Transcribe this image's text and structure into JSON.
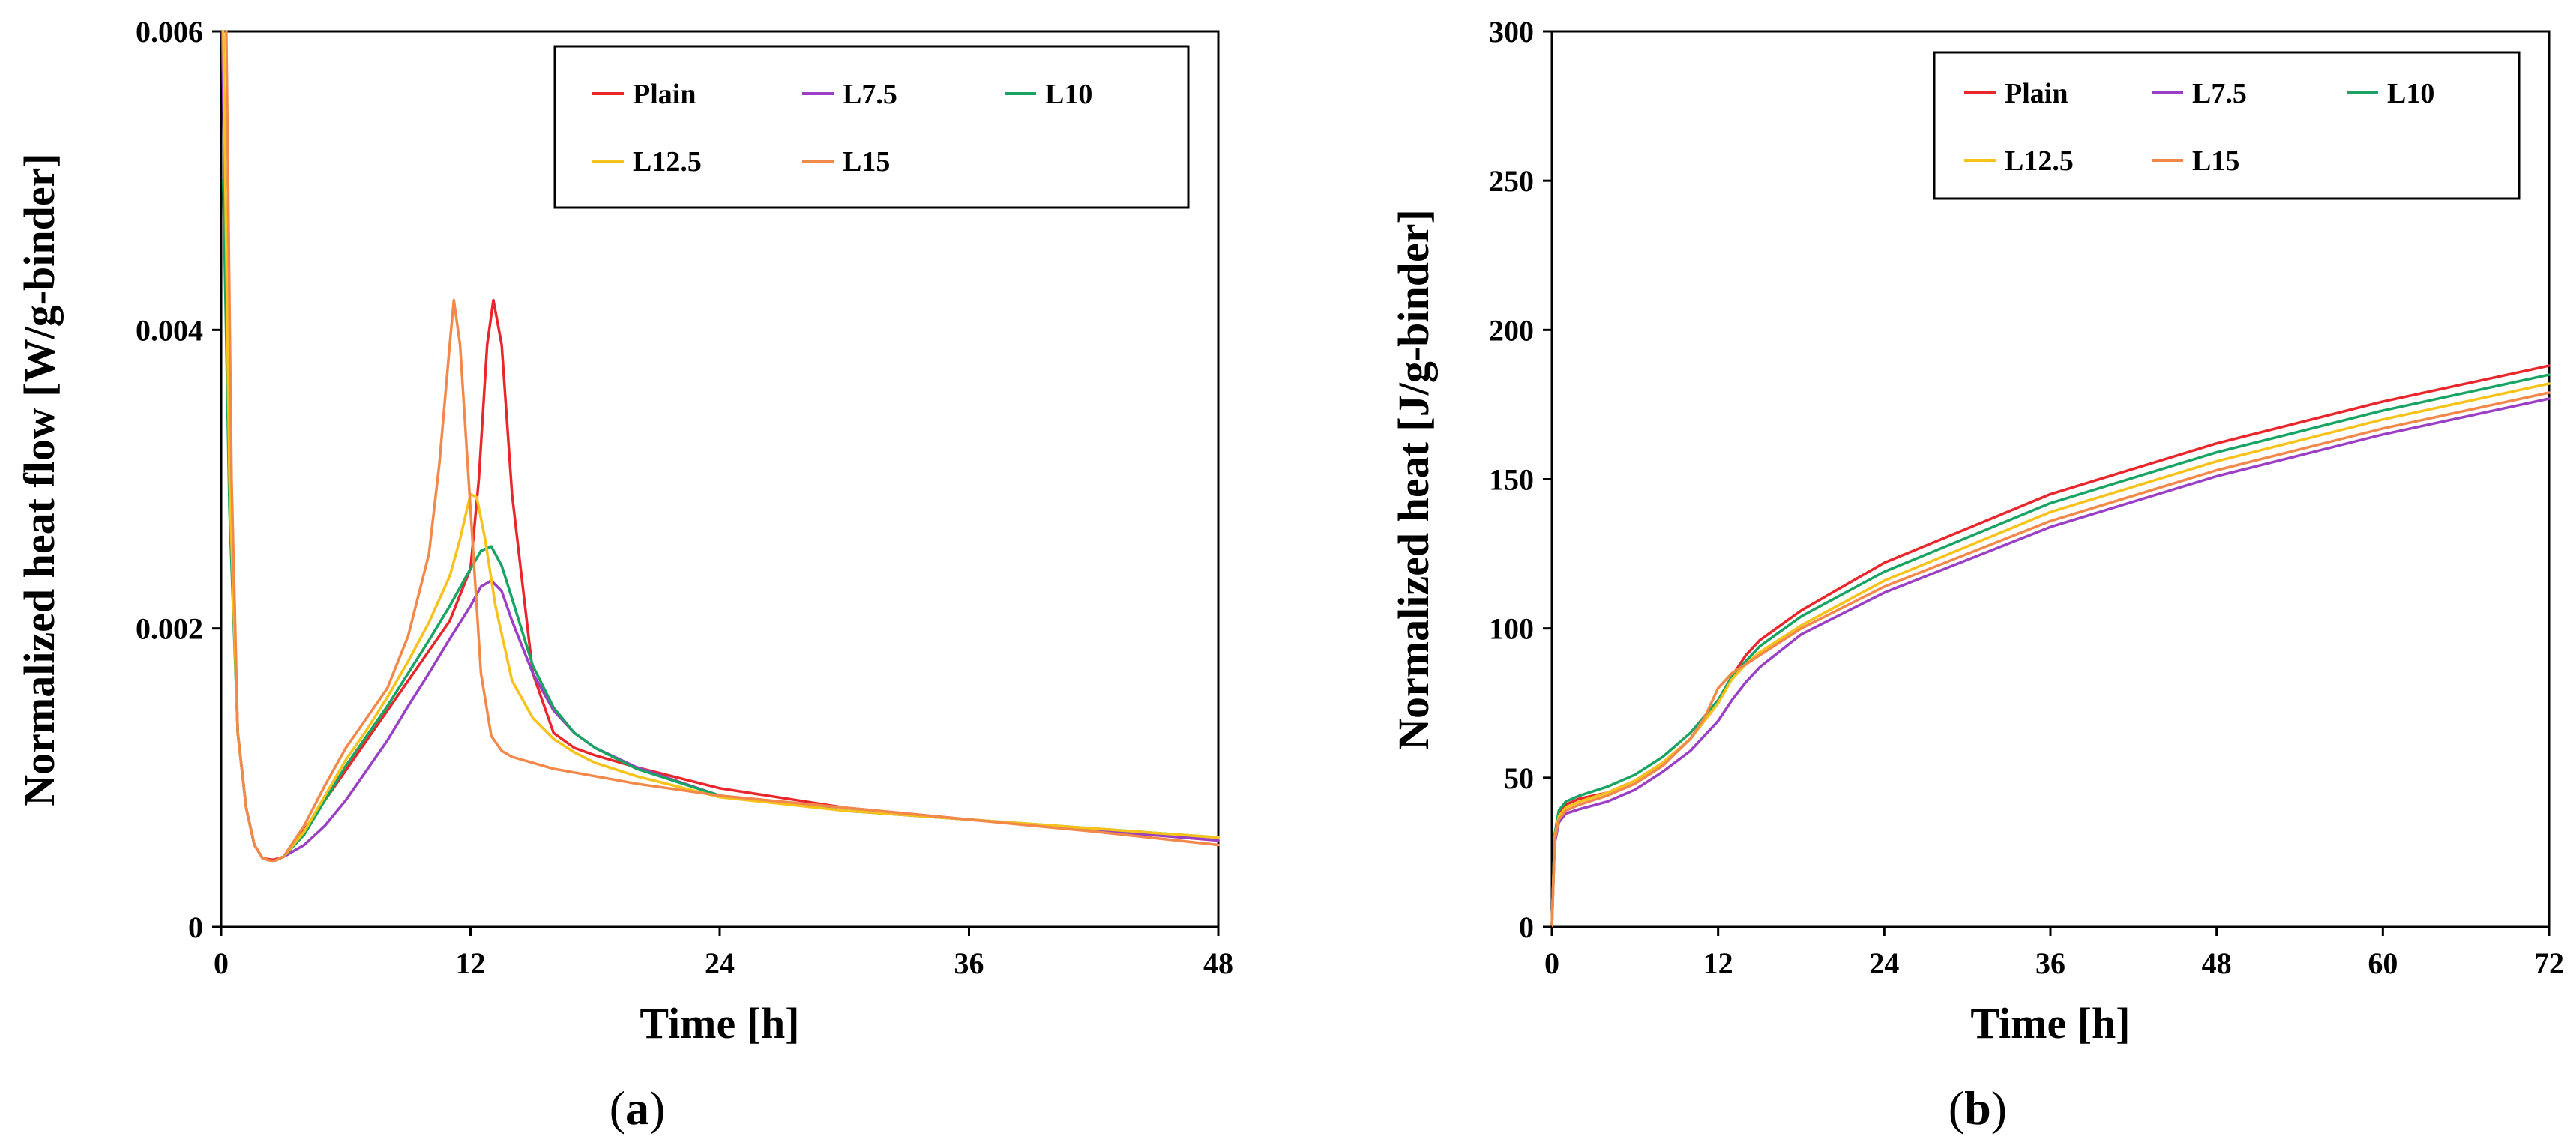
{
  "colors": {
    "Plain": "#e8262b",
    "L7.5": "#9b3fc4",
    "L10": "#19a463",
    "L12.5": "#f7c21a",
    "L15": "#f2894a"
  },
  "chart_data": [
    {
      "type": "line",
      "panel": "a",
      "caption_letter": "a",
      "xlabel": "Time [h]",
      "ylabel": "Normalized heat flow [W/g-binder]",
      "xlim": [
        0,
        48
      ],
      "ylim": [
        0,
        0.006
      ],
      "xticks": [
        0,
        12,
        24,
        36,
        48
      ],
      "xtick_labels": [
        "0",
        "12",
        "24",
        "36",
        "48"
      ],
      "yticks": [
        0,
        0.002,
        0.004,
        0.006
      ],
      "ytick_labels": [
        "0",
        "0.002",
        "0.004",
        "0.006"
      ],
      "legend_position": "top-right",
      "series": [
        {
          "name": "Plain",
          "x": [
            0.1,
            0.4,
            0.8,
            1.2,
            1.6,
            2.0,
            2.5,
            3.0,
            4.0,
            5.0,
            6.0,
            7.0,
            8.0,
            9.0,
            10.0,
            11.0,
            12.0,
            12.4,
            12.8,
            13.1,
            13.5,
            14.0,
            15.0,
            16.0,
            17.0,
            18.0,
            20.0,
            24.0,
            30.0,
            36.0,
            42.0,
            48.0
          ],
          "y": [
            0.006,
            0.003,
            0.0013,
            0.0008,
            0.00055,
            0.00046,
            0.00045,
            0.00047,
            0.00065,
            0.00085,
            0.00105,
            0.00125,
            0.00145,
            0.00165,
            0.00185,
            0.00205,
            0.0024,
            0.003,
            0.0039,
            0.0042,
            0.0039,
            0.0029,
            0.0017,
            0.0013,
            0.0012,
            0.00115,
            0.00107,
            0.00093,
            0.0008,
            0.00072,
            0.00065,
            0.00058
          ]
        },
        {
          "name": "L7.5",
          "x": [
            0.05,
            0.4,
            0.8,
            1.2,
            1.6,
            2.0,
            2.5,
            3.0,
            4.0,
            5.0,
            6.0,
            7.0,
            8.0,
            9.0,
            10.0,
            11.0,
            12.0,
            12.5,
            13.0,
            13.5,
            14.0,
            15.0,
            16.0,
            17.0,
            18.0,
            20.0,
            24.0,
            30.0,
            36.0,
            42.0,
            48.0
          ],
          "y": [
            0.006,
            0.003,
            0.0013,
            0.0008,
            0.00055,
            0.00046,
            0.00044,
            0.00047,
            0.00055,
            0.00068,
            0.00085,
            0.00105,
            0.00125,
            0.00148,
            0.0017,
            0.00193,
            0.00215,
            0.00228,
            0.00232,
            0.00225,
            0.00205,
            0.0017,
            0.00145,
            0.0013,
            0.0012,
            0.00107,
            0.00088,
            0.00078,
            0.00072,
            0.00065,
            0.00058
          ]
        },
        {
          "name": "L10",
          "x": [
            0.1,
            0.4,
            0.8,
            1.2,
            1.6,
            2.0,
            2.5,
            3.0,
            4.0,
            5.0,
            6.0,
            7.0,
            8.0,
            9.0,
            10.0,
            11.0,
            12.0,
            12.5,
            13.0,
            13.5,
            14.0,
            15.0,
            16.0,
            17.0,
            18.0,
            20.0,
            24.0,
            30.0,
            36.0,
            42.0,
            48.0
          ],
          "y": [
            0.005,
            0.0028,
            0.0013,
            0.0008,
            0.00055,
            0.00046,
            0.00044,
            0.00047,
            0.00062,
            0.00085,
            0.00108,
            0.00128,
            0.00148,
            0.0017,
            0.00192,
            0.00215,
            0.0024,
            0.00252,
            0.00255,
            0.00242,
            0.0022,
            0.00175,
            0.00147,
            0.0013,
            0.0012,
            0.00106,
            0.00088,
            0.00078,
            0.00072,
            0.00066,
            0.0006
          ]
        },
        {
          "name": "L12.5",
          "x": [
            0.1,
            0.4,
            0.8,
            1.2,
            1.6,
            2.0,
            2.5,
            3.0,
            4.0,
            5.0,
            6.0,
            7.0,
            8.0,
            9.0,
            10.0,
            11.0,
            11.5,
            12.0,
            12.3,
            12.7,
            13.2,
            14.0,
            15.0,
            16.0,
            17.0,
            18.0,
            20.0,
            24.0,
            30.0,
            36.0,
            42.0,
            48.0
          ],
          "y": [
            0.006,
            0.003,
            0.0013,
            0.0008,
            0.00055,
            0.00046,
            0.00044,
            0.00047,
            0.00064,
            0.00088,
            0.00112,
            0.00132,
            0.00154,
            0.00178,
            0.00204,
            0.00235,
            0.0026,
            0.0029,
            0.00288,
            0.0026,
            0.00215,
            0.00165,
            0.0014,
            0.00126,
            0.00117,
            0.0011,
            0.00101,
            0.00087,
            0.00078,
            0.00072,
            0.00066,
            0.0006
          ]
        },
        {
          "name": "L15",
          "x": [
            0.25,
            0.5,
            0.8,
            1.2,
            1.6,
            2.0,
            2.5,
            3.0,
            4.0,
            5.0,
            6.0,
            7.0,
            8.0,
            9.0,
            10.0,
            10.5,
            11.0,
            11.2,
            11.5,
            12.0,
            12.5,
            13.0,
            13.5,
            14.0,
            15.0,
            16.0,
            18.0,
            20.0,
            24.0,
            30.0,
            36.0,
            42.0,
            48.0
          ],
          "y": [
            0.006,
            0.003,
            0.0013,
            0.0008,
            0.00055,
            0.00046,
            0.00044,
            0.00047,
            0.00068,
            0.00095,
            0.0012,
            0.0014,
            0.0016,
            0.00195,
            0.0025,
            0.0031,
            0.0039,
            0.0042,
            0.0039,
            0.0028,
            0.0017,
            0.00128,
            0.00118,
            0.00114,
            0.0011,
            0.00106,
            0.00101,
            0.00096,
            0.00088,
            0.0008,
            0.00072,
            0.00064,
            0.00055
          ]
        }
      ]
    },
    {
      "type": "line",
      "panel": "b",
      "caption_letter": "b",
      "xlabel": "Time [h]",
      "ylabel": "Normalized heat [J/g-binder]",
      "xlim": [
        0,
        72
      ],
      "ylim": [
        0,
        300
      ],
      "xticks": [
        0,
        12,
        24,
        36,
        48,
        60,
        72
      ],
      "xtick_labels": [
        "0",
        "12",
        "24",
        "36",
        "48",
        "60",
        "72"
      ],
      "yticks": [
        0,
        50,
        100,
        150,
        200,
        250,
        300
      ],
      "ytick_labels": [
        "0",
        "50",
        "100",
        "150",
        "200",
        "250",
        "300"
      ],
      "legend_position": "top-right",
      "series": [
        {
          "name": "Plain",
          "x": [
            0,
            0.2,
            0.5,
            1,
            2,
            4,
            6,
            8,
            10,
            12,
            13,
            14,
            15,
            18,
            24,
            36,
            48,
            60,
            72
          ],
          "y": [
            0,
            30,
            38,
            41,
            43,
            45,
            49,
            55,
            63,
            75,
            84,
            91,
            96,
            106,
            122,
            145,
            162,
            176,
            188
          ]
        },
        {
          "name": "L7.5",
          "x": [
            0,
            0.2,
            0.5,
            1,
            2,
            4,
            6,
            8,
            10,
            12,
            13,
            14,
            15,
            18,
            24,
            36,
            48,
            60,
            72
          ],
          "y": [
            0,
            28,
            35,
            38,
            39.5,
            42,
            46,
            52,
            59,
            69,
            76,
            82,
            87,
            98,
            112,
            134,
            151,
            165,
            177
          ]
        },
        {
          "name": "L10",
          "x": [
            0,
            0.2,
            0.5,
            1,
            2,
            4,
            6,
            8,
            10,
            12,
            13,
            14,
            15,
            18,
            24,
            36,
            48,
            60,
            72
          ],
          "y": [
            0,
            31,
            39,
            42,
            44,
            47,
            51,
            57,
            65,
            76,
            84,
            89,
            94,
            104,
            119,
            142,
            159,
            173,
            185
          ]
        },
        {
          "name": "L12.5",
          "x": [
            0,
            0.2,
            0.5,
            1,
            2,
            4,
            6,
            8,
            10,
            12,
            13,
            14,
            15,
            18,
            24,
            36,
            48,
            60,
            72
          ],
          "y": [
            0,
            30,
            37,
            40,
            42,
            45,
            49,
            55,
            63,
            75,
            83,
            88,
            92,
            101,
            116,
            139,
            156,
            170,
            182
          ]
        },
        {
          "name": "L15",
          "x": [
            0,
            0.2,
            0.5,
            1,
            2,
            4,
            6,
            8,
            10,
            11,
            12,
            13,
            14,
            15,
            18,
            24,
            36,
            48,
            60,
            72
          ],
          "y": [
            0,
            29,
            36,
            39,
            41,
            44,
            48,
            54,
            63,
            70,
            80,
            85,
            88,
            91,
            100,
            114,
            136,
            153,
            167,
            179
          ]
        }
      ]
    }
  ]
}
